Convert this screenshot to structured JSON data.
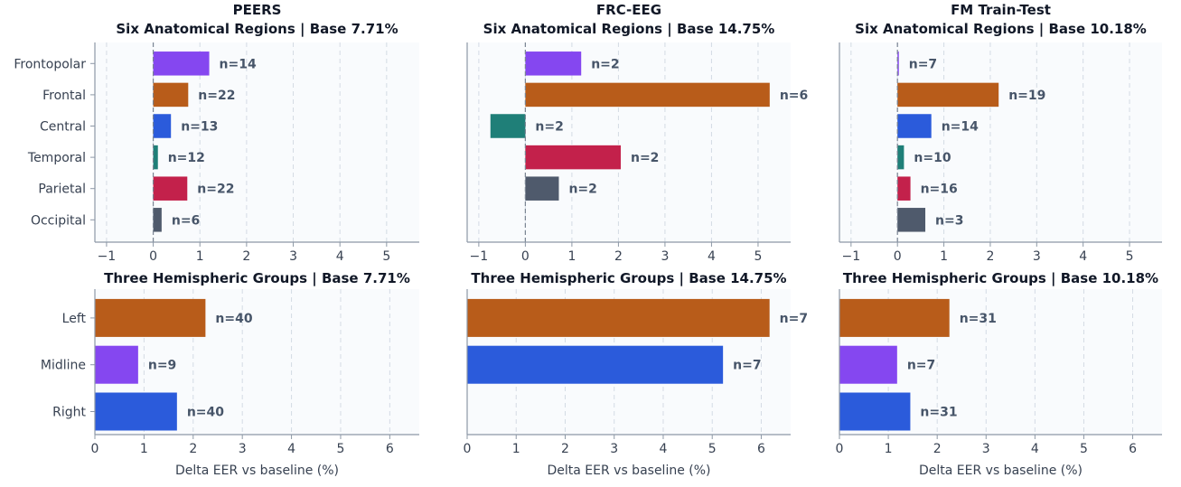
{
  "chart_data": [
    {
      "type": "bar",
      "orientation": "horizontal",
      "title_lines": [
        "PEERS",
        "Six Anatomical Regions | Base 7.71%"
      ],
      "categories": [
        "Frontopolar",
        "Frontal",
        "Central",
        "Temporal",
        "Parietal",
        "Occipital"
      ],
      "values": [
        1.2,
        0.75,
        0.38,
        0.1,
        0.73,
        0.18
      ],
      "labels": [
        "n=14",
        "n=22",
        "n=13",
        "n=12",
        "n=22",
        "n=6"
      ],
      "colors": [
        "#8547f0",
        "#b85c1a",
        "#2b5bdb",
        "#1f7f78",
        "#c3214b",
        "#4f5a6c"
      ],
      "xlim": [
        -1.25,
        5.7
      ],
      "xticks": [
        -1,
        0,
        1,
        2,
        3,
        4,
        5
      ],
      "xticklabels": [
        "−1",
        "0",
        "1",
        "2",
        "3",
        "4",
        "5"
      ],
      "show_categories": true,
      "zero_line": true,
      "xlabel": ""
    },
    {
      "type": "bar",
      "orientation": "horizontal",
      "title_lines": [
        "FRC-EEG",
        "Six Anatomical Regions | Base 14.75%"
      ],
      "categories": [
        "Frontopolar",
        "Frontal",
        "Central",
        "Temporal",
        "Parietal",
        "Occipital"
      ],
      "values": [
        1.2,
        5.25,
        -0.75,
        2.05,
        0.72
      ],
      "value_categories": [
        0,
        1,
        2,
        3,
        4
      ],
      "labels": [
        "n=2",
        "n=6",
        "n=2",
        "n=2",
        "n=2"
      ],
      "colors": [
        "#8547f0",
        "#b85c1a",
        "#1f7f78",
        "#c3214b",
        "#4f5a6c"
      ],
      "xlim": [
        -1.25,
        5.7
      ],
      "xticks": [
        -1,
        0,
        1,
        2,
        3,
        4,
        5
      ],
      "xticklabels": [
        "−1",
        "0",
        "1",
        "2",
        "3",
        "4",
        "5"
      ],
      "show_categories": false,
      "zero_line": true,
      "xlabel": ""
    },
    {
      "type": "bar",
      "orientation": "horizontal",
      "title_lines": [
        "FM Train-Test",
        "Six Anatomical Regions | Base 10.18%"
      ],
      "categories": [
        "Frontopolar",
        "Frontal",
        "Central",
        "Temporal",
        "Parietal",
        "Occipital"
      ],
      "values": [
        0.03,
        2.18,
        0.73,
        0.14,
        0.28,
        0.6
      ],
      "labels": [
        "n=7",
        "n=19",
        "n=14",
        "n=10",
        "n=16",
        "n=3"
      ],
      "colors": [
        "#8547f0",
        "#b85c1a",
        "#2b5bdb",
        "#1f7f78",
        "#c3214b",
        "#4f5a6c"
      ],
      "xlim": [
        -1.25,
        5.7
      ],
      "xticks": [
        -1,
        0,
        1,
        2,
        3,
        4,
        5
      ],
      "xticklabels": [
        "−1",
        "0",
        "1",
        "2",
        "3",
        "4",
        "5"
      ],
      "show_categories": false,
      "zero_line": true,
      "xlabel": ""
    },
    {
      "type": "bar",
      "orientation": "horizontal",
      "title_lines": [
        "Three Hemispheric Groups | Base 7.71%"
      ],
      "categories": [
        "Left",
        "Midline",
        "Right"
      ],
      "values": [
        2.25,
        0.88,
        1.67
      ],
      "labels": [
        "n=40",
        "n=9",
        "n=40"
      ],
      "colors": [
        "#b85c1a",
        "#8547f0",
        "#2b5bdb"
      ],
      "xlim": [
        0,
        6.6
      ],
      "xticks": [
        0,
        1,
        2,
        3,
        4,
        5,
        6
      ],
      "xticklabels": [
        "0",
        "1",
        "2",
        "3",
        "4",
        "5",
        "6"
      ],
      "show_categories": true,
      "zero_line": false,
      "xlabel": "Delta EER vs baseline (%)"
    },
    {
      "type": "bar",
      "orientation": "horizontal",
      "title_lines": [
        "Three Hemispheric Groups | Base 14.75%"
      ],
      "categories": [
        "Left",
        "Right"
      ],
      "values": [
        6.17,
        5.22
      ],
      "labels": [
        "n=7",
        "n=7"
      ],
      "colors": [
        "#b85c1a",
        "#2b5bdb"
      ],
      "xlim": [
        0,
        6.6
      ],
      "xticks": [
        0,
        1,
        2,
        3,
        4,
        5,
        6
      ],
      "xticklabels": [
        "0",
        "1",
        "2",
        "3",
        "4",
        "5",
        "6"
      ],
      "show_categories": false,
      "zero_line": false,
      "xlabel": "Delta EER vs baseline (%)"
    },
    {
      "type": "bar",
      "orientation": "horizontal",
      "title_lines": [
        "Three Hemispheric Groups | Base 10.18%"
      ],
      "categories": [
        "Left",
        "Midline",
        "Right"
      ],
      "values": [
        2.25,
        1.18,
        1.45
      ],
      "labels": [
        "n=31",
        "n=7",
        "n=31"
      ],
      "colors": [
        "#b85c1a",
        "#8547f0",
        "#2b5bdb"
      ],
      "xlim": [
        0,
        6.6
      ],
      "xticks": [
        0,
        1,
        2,
        3,
        4,
        5,
        6
      ],
      "xticklabels": [
        "0",
        "1",
        "2",
        "3",
        "4",
        "5",
        "6"
      ],
      "show_categories": false,
      "zero_line": false,
      "xlabel": "Delta EER vs baseline (%)"
    }
  ]
}
